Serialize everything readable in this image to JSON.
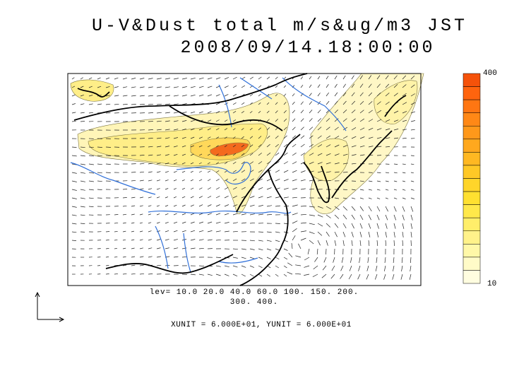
{
  "title": {
    "line1": "U-V&Dust total m/s&ug/m3 JST",
    "line2": "2008/09/14.18:00:00"
  },
  "contour_levels": {
    "line1": "lev= 10.0 20.0 40.0 60.0 100. 150. 200.",
    "line2": "300. 400."
  },
  "units_text": "XUNIT = 6.000E+01, YUNIT = 6.000E+01",
  "colorbar": {
    "max_label": "400",
    "min_label": "10",
    "colors": [
      "#fffde0",
      "#fffbc8",
      "#fff8a8",
      "#fff28a",
      "#ffee6a",
      "#ffe84a",
      "#ffe030",
      "#ffd52a",
      "#ffc826",
      "#ffb822",
      "#ffa81e",
      "#ff981a",
      "#ff8816",
      "#ff7612",
      "#ff640e",
      "#f5520a"
    ]
  },
  "colors": {
    "river": "#2f6fd8",
    "coast": "#000000",
    "dust_light": "#fff7c0",
    "dust_mid": "#fff08c",
    "dust_high": "#ffd95a",
    "dust_peak": "#f46a1e"
  }
}
